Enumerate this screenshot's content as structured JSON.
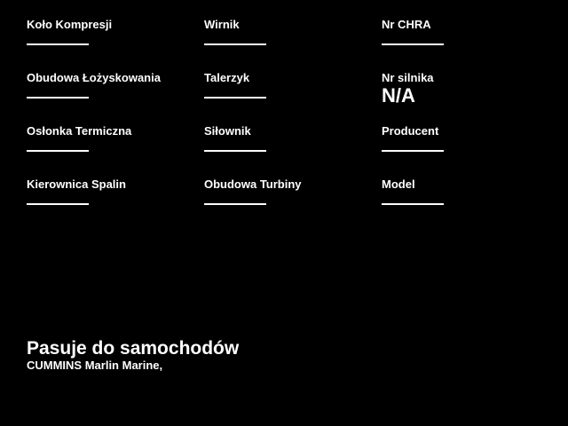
{
  "page": {
    "background_color": "#000000",
    "text_color": "#ffffff"
  },
  "spec_fields": [
    {
      "label": "Koło Kompresji",
      "value": ""
    },
    {
      "label": "Wirnik",
      "value": ""
    },
    {
      "label": "Nr CHRA",
      "value": ""
    },
    {
      "label": "Obudowa Łożyskowania",
      "value": ""
    },
    {
      "label": "Talerzyk",
      "value": ""
    },
    {
      "label": "Nr silnika",
      "value": "N/A"
    },
    {
      "label": "Osłonka Termiczna",
      "value": ""
    },
    {
      "label": "Siłownik",
      "value": ""
    },
    {
      "label": "Producent",
      "value": ""
    },
    {
      "label": "Kierownica Spalin",
      "value": ""
    },
    {
      "label": "Obudowa Turbiny",
      "value": ""
    },
    {
      "label": "Model",
      "value": ""
    }
  ],
  "fits_section": {
    "title": "Pasuje do samochodów",
    "vehicles": "CUMMINS Marlin Marine,"
  }
}
